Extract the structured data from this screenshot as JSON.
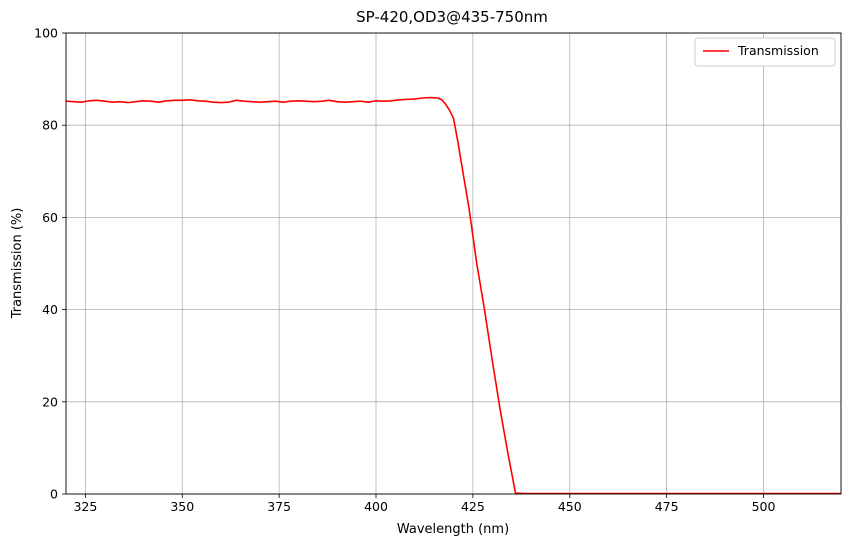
{
  "chart_data": {
    "type": "line",
    "title": "SP-420,OD3@435-750nm",
    "xlabel": "Wavelength (nm)",
    "ylabel": "Transmission (%)",
    "xlim": [
      320,
      520
    ],
    "ylim": [
      0,
      100
    ],
    "x_ticks": [
      325,
      350,
      375,
      400,
      425,
      450,
      475,
      500
    ],
    "y_ticks": [
      0,
      20,
      40,
      60,
      80,
      100
    ],
    "grid": true,
    "legend_position": "top-right",
    "series": [
      {
        "name": "Transmission",
        "color": "#ff0000",
        "x": [
          320,
          322,
          324,
          326,
          328,
          330,
          332,
          334,
          336,
          338,
          340,
          342,
          344,
          346,
          348,
          350,
          352,
          354,
          356,
          358,
          360,
          362,
          364,
          366,
          368,
          370,
          372,
          374,
          376,
          378,
          380,
          382,
          384,
          386,
          388,
          390,
          392,
          394,
          396,
          398,
          400,
          402,
          404,
          406,
          408,
          410,
          412,
          414,
          416,
          417,
          418,
          419,
          420,
          421,
          422,
          424,
          426,
          428,
          430,
          432,
          434,
          436,
          438,
          439,
          440,
          450,
          460,
          470,
          480,
          490,
          500,
          510,
          520
        ],
        "values": [
          85.2,
          85.1,
          85.0,
          85.3,
          85.4,
          85.2,
          85.0,
          85.1,
          84.9,
          85.1,
          85.3,
          85.2,
          85.0,
          85.3,
          85.4,
          85.4,
          85.5,
          85.3,
          85.2,
          85.0,
          84.9,
          85.0,
          85.4,
          85.2,
          85.1,
          85.0,
          85.1,
          85.2,
          85.0,
          85.2,
          85.3,
          85.2,
          85.1,
          85.2,
          85.4,
          85.1,
          85.0,
          85.1,
          85.2,
          85.0,
          85.3,
          85.2,
          85.3,
          85.5,
          85.6,
          85.7,
          85.9,
          86.0,
          85.9,
          85.5,
          84.5,
          83.2,
          81.5,
          77.0,
          72.0,
          62.0,
          50.0,
          40.0,
          29.0,
          18.5,
          9.0,
          0.2,
          0.1,
          0.1,
          0.1,
          0.1,
          0.1,
          0.1,
          0.1,
          0.1,
          0.1,
          0.1,
          0.1
        ]
      }
    ]
  }
}
